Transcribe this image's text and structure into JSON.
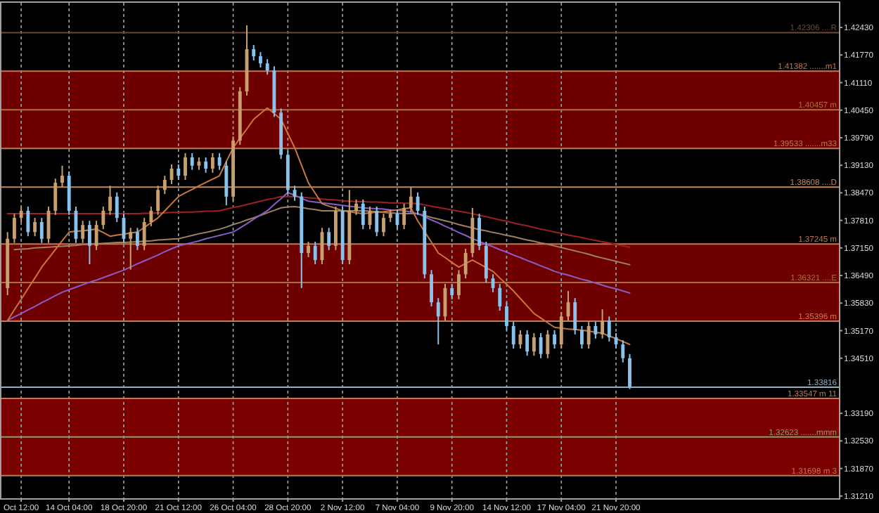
{
  "chart_data": {
    "type": "candlestick",
    "categories": [
      null,
      null,
      "Oct 12:00",
      null,
      null,
      null,
      null,
      null,
      null,
      "14 Oct 04:00",
      null,
      null,
      null,
      null,
      null,
      null,
      null,
      "18 Oct 20:00",
      null,
      null,
      null,
      null,
      null,
      null,
      null,
      "21 Oct 12:00",
      null,
      null,
      null,
      null,
      null,
      null,
      null,
      "26 Oct 04:00",
      null,
      null,
      null,
      null,
      null,
      null,
      null,
      "28 Oct 20:00",
      null,
      null,
      null,
      null,
      null,
      null,
      null,
      "2 Nov 12:00",
      null,
      null,
      null,
      null,
      null,
      null,
      null,
      "7 Nov 04:00",
      null,
      null,
      null,
      null,
      null,
      null,
      null,
      "9 Nov 20:00",
      null,
      null,
      null,
      null,
      null,
      null,
      null,
      "14 Nov 12:00",
      null,
      null,
      null,
      null,
      null,
      null,
      null,
      "17 Nov 04:00",
      null,
      null,
      null,
      null,
      null,
      null,
      null,
      "21 Nov 20:00",
      null,
      null
    ],
    "ylim": [
      1.3114,
      1.4302
    ],
    "yticks": [
      {
        "value": 1.4243,
        "label": "1.42430"
      },
      {
        "value": 1.4177,
        "label": "1.41770"
      },
      {
        "value": 1.4111,
        "label": "1.41110"
      },
      {
        "value": 1.4045,
        "label": "1.40450"
      },
      {
        "value": 1.3979,
        "label": "1.39790"
      },
      {
        "value": 1.3913,
        "label": "1.39130"
      },
      {
        "value": 1.3847,
        "label": "1.38470"
      },
      {
        "value": 1.3781,
        "label": "1.37810"
      },
      {
        "value": 1.3715,
        "label": "1.37150"
      },
      {
        "value": 1.3649,
        "label": "1.36490"
      },
      {
        "value": 1.3583,
        "label": "1.35830"
      },
      {
        "value": 1.3517,
        "label": "1.35170"
      },
      {
        "value": 1.3451,
        "label": "1.34510"
      },
      {
        "value": 1.3319,
        "label": "1.33190"
      },
      {
        "value": 1.3253,
        "label": "1.32530"
      },
      {
        "value": 1.3187,
        "label": "1.31870"
      },
      {
        "value": 1.3121,
        "label": "1.31210"
      }
    ],
    "grid": "x",
    "bands": [
      {
        "axis": "y",
        "from": 1.39533,
        "to": 1.41382,
        "color": "#6e0000"
      },
      {
        "axis": "y",
        "from": 1.35396,
        "to": 1.37245,
        "color": "#6e0000"
      },
      {
        "axis": "y",
        "from": 1.31698,
        "to": 1.33547,
        "color": "#7a0000"
      }
    ],
    "ref_lines": [
      {
        "axis": "y",
        "value": 1.42306,
        "label": "1.42306 ....R",
        "color": "#6b4a3a"
      },
      {
        "axis": "y",
        "value": 1.41382,
        "label": "1.41382 .......m1",
        "color": "#c07850"
      },
      {
        "axis": "y",
        "value": 1.40457,
        "label": "1.40457  m",
        "color": "#a87040"
      },
      {
        "axis": "y",
        "value": 1.39533,
        "label": "1.39533 .......m33",
        "color": "#c07850"
      },
      {
        "axis": "y",
        "value": 1.38608,
        "label": "1.38608 ....D",
        "color": "#c08860"
      },
      {
        "axis": "y",
        "value": 1.37245,
        "label": "1.37245 m",
        "color": "#c07850"
      },
      {
        "axis": "y",
        "value": 1.36321,
        "label": "1.36321 ....E",
        "color": "#a87040"
      },
      {
        "axis": "y",
        "value": 1.35396,
        "label": "1.35396 m",
        "color": "#d07850"
      },
      {
        "axis": "y",
        "value": 1.33816,
        "label": "1.33816",
        "color": "#8fb0c0"
      },
      {
        "axis": "y",
        "value": 1.33547,
        "label": "1.33547 m 11",
        "color": "#c07850"
      },
      {
        "axis": "y",
        "value": 1.32623,
        "label": "1.32623 .......mmm",
        "color": "#80a070"
      },
      {
        "axis": "y",
        "value": 1.31698,
        "label": "1.31698 m 3",
        "color": "#c07850"
      }
    ],
    "series": [
      {
        "type": "line",
        "color": "#a02020",
        "values": [
          1.3797,
          1.3797,
          1.3797,
          1.3797,
          1.3797,
          1.3797,
          1.3797,
          1.3797,
          1.3797,
          1.3797,
          1.3797,
          1.3797,
          1.3797,
          1.3797,
          1.3797,
          1.3797,
          1.3797,
          1.3797,
          1.3797,
          1.3797,
          1.3798,
          1.3798,
          1.3799,
          1.3799,
          1.38,
          1.38,
          1.3801,
          1.3801,
          1.3802,
          1.3803,
          1.3803,
          1.3804,
          1.3808,
          1.3812,
          1.3815,
          1.3819,
          1.3823,
          1.3827,
          1.3831,
          1.3834,
          1.3838,
          1.3838,
          1.3838,
          1.3837,
          1.3835,
          1.3834,
          1.3832,
          1.3831,
          1.383,
          1.3828,
          1.3827,
          1.3826,
          1.3826,
          1.3825,
          1.3825,
          1.3824,
          1.3823,
          1.3823,
          1.3822,
          1.3822,
          1.3821,
          1.3818,
          1.3815,
          1.3812,
          1.3809,
          1.3806,
          1.3803,
          1.38,
          1.3797,
          1.3793,
          1.379,
          1.3786,
          1.3782,
          1.3779,
          1.3775,
          1.3771,
          1.3768,
          1.3764,
          1.376,
          1.3757,
          1.3753,
          1.375,
          1.3746,
          1.3743,
          1.374,
          1.3736,
          1.3733,
          1.373,
          1.3727,
          1.3723,
          1.372,
          1.3717
        ]
      },
      {
        "type": "line",
        "color": "#a08060",
        "values": [
          null,
          1.3711,
          1.3712,
          1.3713,
          1.3715,
          1.3716,
          1.3717,
          1.3718,
          1.3719,
          1.372,
          1.3721,
          1.3723,
          1.3724,
          1.3725,
          1.3726,
          1.3727,
          1.3728,
          1.3728,
          1.3729,
          1.373,
          1.3731,
          1.3732,
          1.3734,
          1.3735,
          1.3736,
          1.3737,
          1.3741,
          1.3745,
          1.3749,
          1.3752,
          1.3756,
          1.376,
          1.3765,
          1.3771,
          1.3776,
          1.3782,
          1.3787,
          1.3793,
          1.3799,
          1.3805,
          1.3811,
          1.3813,
          1.3814,
          1.3812,
          1.3809,
          1.3807,
          1.3804,
          1.3804,
          1.3804,
          1.3804,
          1.3804,
          1.3804,
          1.3804,
          1.3803,
          1.3802,
          1.38,
          1.3799,
          1.3798,
          1.3797,
          1.3797,
          1.3797,
          1.3793,
          1.3788,
          1.3784,
          1.378,
          1.3776,
          1.3771,
          1.3767,
          1.3763,
          1.3759,
          1.3756,
          1.3752,
          1.3749,
          1.3745,
          1.3742,
          1.3738,
          1.3734,
          1.3731,
          1.3727,
          1.3724,
          1.372,
          1.3716,
          1.3712,
          1.3708,
          1.3704,
          1.37,
          1.3695,
          1.3691,
          1.3687,
          1.3683,
          1.3679,
          1.3675
        ]
      },
      {
        "type": "line",
        "color": "#8a5cc8",
        "values": [
          1.3541,
          1.355,
          1.3558,
          1.3567,
          1.3575,
          1.3584,
          1.3592,
          1.3601,
          1.3609,
          1.3615,
          1.3621,
          1.3627,
          1.3633,
          1.3638,
          1.3644,
          1.365,
          1.3656,
          1.3662,
          1.3669,
          1.3677,
          1.3684,
          1.3691,
          1.3698,
          1.3706,
          1.3713,
          1.372,
          1.3724,
          1.3728,
          1.3732,
          1.3737,
          1.3741,
          1.3745,
          1.3749,
          1.3753,
          1.3763,
          1.3773,
          1.3784,
          1.3794,
          1.3804,
          1.3819,
          1.3833,
          1.3848,
          1.3841,
          1.3834,
          1.3827,
          1.3825,
          1.3823,
          1.3821,
          1.3819,
          1.3817,
          1.3815,
          1.3813,
          1.3811,
          1.381,
          1.3809,
          1.3808,
          1.3806,
          1.3805,
          1.3804,
          1.3801,
          1.3797,
          1.379,
          1.3782,
          1.3775,
          1.3767,
          1.376,
          1.3752,
          1.3745,
          1.3737,
          1.3731,
          1.3724,
          1.3718,
          1.3711,
          1.3705,
          1.3698,
          1.3692,
          1.3685,
          1.3679,
          1.3672,
          1.3666,
          1.3659,
          1.3654,
          1.365,
          1.3645,
          1.364,
          1.3636,
          1.3631,
          1.3626,
          1.3621,
          1.3617,
          1.3612,
          1.3607
        ]
      },
      {
        "type": "line",
        "color": "#c8783c",
        "values": [
          1.3541,
          1.3567,
          1.3592,
          1.3618,
          1.3643,
          1.3669,
          1.369,
          1.3711,
          1.3732,
          1.3753,
          1.3755,
          1.3756,
          1.3758,
          1.376,
          1.3752,
          1.3743,
          1.3746,
          1.3748,
          1.3751,
          1.3753,
          1.3764,
          1.3776,
          1.3787,
          1.3804,
          1.3821,
          1.3838,
          1.3847,
          1.3855,
          1.3864,
          1.3872,
          1.388,
          1.3888,
          1.3922,
          1.3955,
          1.3978,
          1.4,
          1.4023,
          1.4037,
          1.405,
          1.4037,
          1.4023,
          1.3989,
          1.3955,
          1.3913,
          1.3871,
          1.3846,
          1.3821,
          1.3815,
          1.381,
          1.3804,
          1.3802,
          1.3799,
          1.3797,
          1.3799,
          1.3801,
          1.3802,
          1.3804,
          1.3806,
          1.3809,
          1.3811,
          1.378,
          1.3754,
          1.3729,
          1.3703,
          1.3692,
          1.368,
          1.3669,
          1.3678,
          1.3686,
          1.3677,
          1.3668,
          1.3659,
          1.3643,
          1.3628,
          1.3612,
          1.3594,
          1.3576,
          1.3558,
          1.3547,
          1.3536,
          1.3525,
          1.3523,
          1.3521,
          1.352,
          1.3518,
          1.3516,
          1.3513,
          1.3511,
          1.3504,
          1.3498,
          1.3491,
          1.3484
        ]
      },
      {
        "ohlc": [
          [
            1.3619,
            1.3753,
            1.3602,
            1.3737
          ],
          [
            1.3737,
            1.3797,
            1.3727,
            1.3787
          ],
          [
            1.3787,
            1.3814,
            1.3777,
            1.3804
          ],
          [
            1.3804,
            1.3814,
            1.3743,
            1.3753
          ],
          [
            1.3753,
            1.3787,
            1.3743,
            1.3777
          ],
          [
            1.3777,
            1.3787,
            1.3727,
            1.3737
          ],
          [
            1.3737,
            1.3814,
            1.3727,
            1.3804
          ],
          [
            1.3804,
            1.3881,
            1.3794,
            1.3871
          ],
          [
            1.3871,
            1.3912,
            1.3861,
            1.3888
          ],
          [
            1.3888,
            1.3898,
            1.3794,
            1.3804
          ],
          [
            1.3804,
            1.3814,
            1.3727,
            1.3737
          ],
          [
            1.3737,
            1.378,
            1.3727,
            1.377
          ],
          [
            1.377,
            1.378,
            1.3676,
            1.372
          ],
          [
            1.372,
            1.378,
            1.371,
            1.377
          ],
          [
            1.377,
            1.3814,
            1.376,
            1.3804
          ],
          [
            1.3804,
            1.3864,
            1.3794,
            1.3838
          ],
          [
            1.3838,
            1.3848,
            1.3777,
            1.3787
          ],
          [
            1.3787,
            1.3797,
            1.3727,
            1.3737
          ],
          [
            1.3737,
            1.3763,
            1.3663,
            1.3753
          ],
          [
            1.3753,
            1.3763,
            1.371,
            1.372
          ],
          [
            1.372,
            1.3787,
            1.371,
            1.3777
          ],
          [
            1.3777,
            1.3814,
            1.3767,
            1.3804
          ],
          [
            1.3804,
            1.3864,
            1.3794,
            1.3854
          ],
          [
            1.3854,
            1.3888,
            1.3844,
            1.3878
          ],
          [
            1.3878,
            1.3915,
            1.3868,
            1.3905
          ],
          [
            1.3905,
            1.3915,
            1.3878,
            1.3888
          ],
          [
            1.3888,
            1.3942,
            1.3878,
            1.3932
          ],
          [
            1.3932,
            1.3942,
            1.3902,
            1.3912
          ],
          [
            1.3912,
            1.3932,
            1.3902,
            1.3922
          ],
          [
            1.3922,
            1.3932,
            1.3895,
            1.3905
          ],
          [
            1.3905,
            1.3942,
            1.3895,
            1.3932
          ],
          [
            1.3932,
            1.3942,
            1.3902,
            1.3912
          ],
          [
            1.3912,
            1.3922,
            1.3817,
            1.3838
          ],
          [
            1.3838,
            1.3982,
            1.3828,
            1.3972
          ],
          [
            1.3972,
            1.41,
            1.3962,
            1.409
          ],
          [
            1.409,
            1.4248,
            1.408,
            1.4191
          ],
          [
            1.4191,
            1.4201,
            1.4164,
            1.4174
          ],
          [
            1.4174,
            1.4184,
            1.4147,
            1.4157
          ],
          [
            1.4157,
            1.4167,
            1.413,
            1.414
          ],
          [
            1.414,
            1.415,
            1.4029,
            1.4039
          ],
          [
            1.4039,
            1.4049,
            1.3928,
            1.3938
          ],
          [
            1.3938,
            1.3948,
            1.3844,
            1.3854
          ],
          [
            1.3854,
            1.3864,
            1.3828,
            1.3838
          ],
          [
            1.3838,
            1.3848,
            1.3619,
            1.3703
          ],
          [
            1.3703,
            1.373,
            1.3693,
            1.372
          ],
          [
            1.372,
            1.373,
            1.3676,
            1.3686
          ],
          [
            1.3686,
            1.3763,
            1.3676,
            1.3753
          ],
          [
            1.3753,
            1.3763,
            1.371,
            1.372
          ],
          [
            1.372,
            1.3814,
            1.371,
            1.3804
          ],
          [
            1.3804,
            1.3814,
            1.3676,
            1.3686
          ],
          [
            1.3686,
            1.3854,
            1.3676,
            1.3804
          ],
          [
            1.3804,
            1.3831,
            1.3794,
            1.3821
          ],
          [
            1.3821,
            1.3831,
            1.376,
            1.377
          ],
          [
            1.377,
            1.3814,
            1.376,
            1.3804
          ],
          [
            1.3804,
            1.3814,
            1.3743,
            1.3753
          ],
          [
            1.3753,
            1.3797,
            1.3743,
            1.3787
          ],
          [
            1.3787,
            1.3807,
            1.3777,
            1.3797
          ],
          [
            1.3797,
            1.3807,
            1.376,
            1.377
          ],
          [
            1.377,
            1.3821,
            1.376,
            1.3811
          ],
          [
            1.3811,
            1.3861,
            1.3801,
            1.3838
          ],
          [
            1.3838,
            1.3848,
            1.3794,
            1.3804
          ],
          [
            1.3804,
            1.3814,
            1.3642,
            1.3652
          ],
          [
            1.3652,
            1.3662,
            1.3575,
            1.3585
          ],
          [
            1.3585,
            1.3595,
            1.3484,
            1.3551
          ],
          [
            1.3551,
            1.3629,
            1.3541,
            1.3619
          ],
          [
            1.3619,
            1.3629,
            1.3592,
            1.3602
          ],
          [
            1.3602,
            1.3662,
            1.3592,
            1.3652
          ],
          [
            1.3652,
            1.3713,
            1.3642,
            1.3703
          ],
          [
            1.3703,
            1.3811,
            1.3693,
            1.3787
          ],
          [
            1.3787,
            1.3797,
            1.371,
            1.372
          ],
          [
            1.372,
            1.373,
            1.3632,
            1.3642
          ],
          [
            1.3642,
            1.3652,
            1.3609,
            1.3619
          ],
          [
            1.3619,
            1.3629,
            1.3565,
            1.3575
          ],
          [
            1.3575,
            1.3585,
            1.3518,
            1.3528
          ],
          [
            1.3528,
            1.3538,
            1.3474,
            1.3484
          ],
          [
            1.3484,
            1.3518,
            1.3474,
            1.3508
          ],
          [
            1.3508,
            1.3518,
            1.3457,
            1.3467
          ],
          [
            1.3467,
            1.3511,
            1.3457,
            1.3501
          ],
          [
            1.3501,
            1.3511,
            1.3451,
            1.3461
          ],
          [
            1.3461,
            1.3518,
            1.3451,
            1.3508
          ],
          [
            1.3508,
            1.3518,
            1.3474,
            1.3484
          ],
          [
            1.3484,
            1.3561,
            1.3474,
            1.3551
          ],
          [
            1.3551,
            1.3612,
            1.3541,
            1.3585
          ],
          [
            1.3585,
            1.3595,
            1.3508,
            1.3518
          ],
          [
            1.3518,
            1.3528,
            1.3474,
            1.3484
          ],
          [
            1.3484,
            1.3538,
            1.3474,
            1.3528
          ],
          [
            1.3528,
            1.3538,
            1.3498,
            1.3508
          ],
          [
            1.3508,
            1.3568,
            1.3498,
            1.3541
          ],
          [
            1.3541,
            1.3551,
            1.3491,
            1.3501
          ],
          [
            1.3501,
            1.3511,
            1.3474,
            1.3484
          ],
          [
            1.3484,
            1.3494,
            1.3441,
            1.3451
          ],
          [
            1.3451,
            1.3461,
            1.3377,
            1.3382
          ]
        ],
        "colors": [
          "#c8a070",
          "#c8a070",
          "#c8a070",
          "#87c3ec",
          "#c8a070",
          "#87c3ec",
          "#c8a070",
          "#c8a070",
          "#c8a070",
          "#87c3ec",
          "#87c3ec",
          "#c8a070",
          "#87c3ec",
          "#c8a070",
          "#c8a070",
          "#c8a070",
          "#87c3ec",
          "#87c3ec",
          "#c8a070",
          "#87c3ec",
          "#c8a070",
          "#c8a070",
          "#c8a070",
          "#c8a070",
          "#c8a070",
          "#87c3ec",
          "#c8a070",
          "#87c3ec",
          "#c8a070",
          "#87c3ec",
          "#c8a070",
          "#87c3ec",
          "#87c3ec",
          "#c8a070",
          "#c8a070",
          "#c8a070",
          "#87c3ec",
          "#87c3ec",
          "#87c3ec",
          "#87c3ec",
          "#87c3ec",
          "#87c3ec",
          "#87c3ec",
          "#87c3ec",
          "#c8a070",
          "#87c3ec",
          "#c8a070",
          "#87c3ec",
          "#c8a070",
          "#87c3ec",
          "#c8a070",
          "#c8a070",
          "#87c3ec",
          "#c8a070",
          "#87c3ec",
          "#c8a070",
          "#c8a070",
          "#87c3ec",
          "#c8a070",
          "#c8a070",
          "#87c3ec",
          "#87c3ec",
          "#87c3ec",
          "#87c3ec",
          "#c8a070",
          "#87c3ec",
          "#c8a070",
          "#c8a070",
          "#c8a070",
          "#87c3ec",
          "#87c3ec",
          "#87c3ec",
          "#87c3ec",
          "#87c3ec",
          "#87c3ec",
          "#c8a070",
          "#87c3ec",
          "#c8a070",
          "#87c3ec",
          "#c8a070",
          "#87c3ec",
          "#c8a070",
          "#c8a070",
          "#87c3ec",
          "#87c3ec",
          "#c8a070",
          "#87c3ec",
          "#c8a070",
          "#87c3ec",
          "#87c3ec",
          "#87c3ec",
          "#87c3ec"
        ]
      }
    ]
  }
}
